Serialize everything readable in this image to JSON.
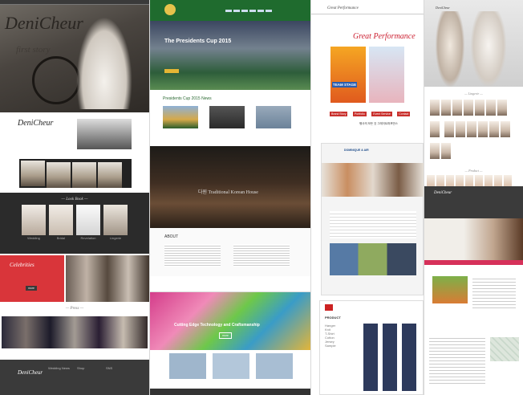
{
  "col1": {
    "hero_logo": "DeniCheur",
    "hero_sub": "first story",
    "logo": "DeniCheur",
    "section_look": "— Look Book —",
    "look_items": [
      "Wedding",
      "Bridal",
      "Revelation",
      "Lingerie"
    ],
    "celebrities": "Celebrities",
    "more": "more",
    "press": "— Press —",
    "footer_logo": "DeniCheur",
    "news": "Wedding News",
    "shop": "Shop",
    "sns": "SNS"
  },
  "col2": {
    "top_title": "The Presidents Cup 2015",
    "news_title": "Presidents Cup 2015 News",
    "mid_title": "다원 Traditional Korean House",
    "about": "ABOUT",
    "green_title": "Cutting Edge Technology and Craftsmanship",
    "green_btn": "more"
  },
  "col3": {
    "top_title": "Great Performance",
    "banner": "Great Performance",
    "team": "TEAM STAGE",
    "btn1": "Brand Story",
    "btn2": "Portfolio",
    "btn3": "Event Service",
    "btn4": "Contact",
    "kr_text": "행사의 모든 것 그레이트퍼포먼스",
    "mid_brand": "DOMINIQUE & AIR",
    "list_title": "PRODUCT",
    "list_items": [
      "Hanger",
      "Knit",
      "T-Shirt",
      "Cotton",
      "Jersey",
      "Sample"
    ]
  },
  "col4": {
    "logo": "DeniCheur",
    "section1": "— Lingerie —",
    "section2": "— Product —",
    "footer_logo": "DeniCheur"
  }
}
